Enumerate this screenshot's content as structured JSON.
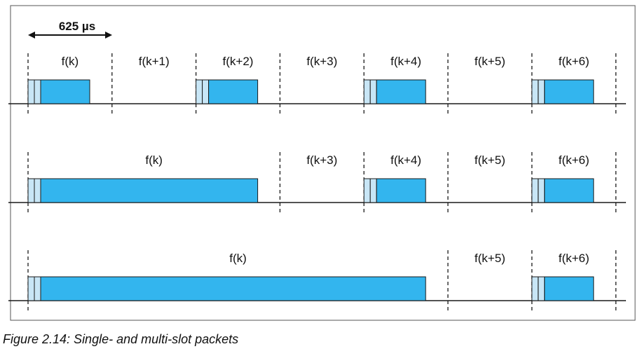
{
  "duration_label": "625 µs",
  "caption": "Figure 2.14:  Single- and multi-slot packets",
  "colors": {
    "packet_fill": "#33B5EE",
    "header_fill": "#C8E6F6",
    "stroke": "#1a1a1a"
  },
  "rows": [
    {
      "name": "single-slot",
      "slot_labels": [
        {
          "slot": 0,
          "text": "f(k)"
        },
        {
          "slot": 1,
          "text": "f(k+1)"
        },
        {
          "slot": 2,
          "text": "f(k+2)"
        },
        {
          "slot": 3,
          "text": "f(k+3)"
        },
        {
          "slot": 4,
          "text": "f(k+4)"
        },
        {
          "slot": 5,
          "text": "f(k+5)"
        },
        {
          "slot": 6,
          "text": "f(k+6)"
        }
      ],
      "packets": [
        {
          "start_slot": 0,
          "slots": 1
        },
        {
          "start_slot": 2,
          "slots": 1
        },
        {
          "start_slot": 4,
          "slots": 1
        },
        {
          "start_slot": 6,
          "slots": 1
        }
      ]
    },
    {
      "name": "three-slot",
      "slot_labels": [
        {
          "slot": 0,
          "span": 3,
          "text": "f(k)"
        },
        {
          "slot": 3,
          "text": "f(k+3)"
        },
        {
          "slot": 4,
          "text": "f(k+4)"
        },
        {
          "slot": 5,
          "text": "f(k+5)"
        },
        {
          "slot": 6,
          "text": "f(k+6)"
        }
      ],
      "packets": [
        {
          "start_slot": 0,
          "slots": 3
        },
        {
          "start_slot": 4,
          "slots": 1
        },
        {
          "start_slot": 6,
          "slots": 1
        }
      ]
    },
    {
      "name": "five-slot",
      "slot_labels": [
        {
          "slot": 0,
          "span": 5,
          "text": "f(k)"
        },
        {
          "slot": 5,
          "text": "f(k+5)"
        },
        {
          "slot": 6,
          "text": "f(k+6)"
        }
      ],
      "packets": [
        {
          "start_slot": 0,
          "slots": 5
        },
        {
          "start_slot": 6,
          "slots": 1
        }
      ]
    }
  ]
}
